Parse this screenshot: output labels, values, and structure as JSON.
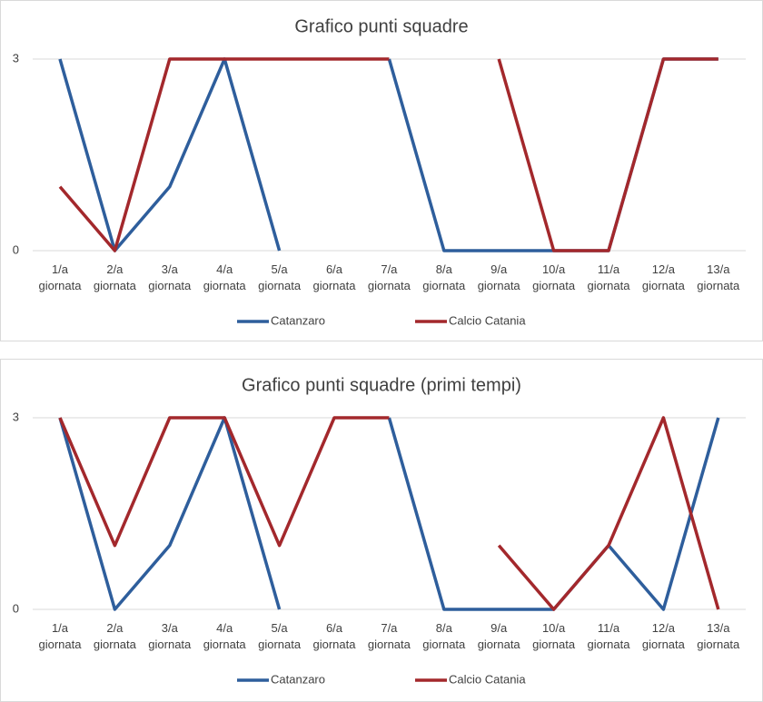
{
  "chart_data": [
    {
      "type": "line",
      "title": "Grafico punti squadre",
      "categories": [
        "1/a giornata",
        "2/a giornata",
        "3/a giornata",
        "4/a giornata",
        "5/a giornata",
        "6/a giornata",
        "7/a giornata",
        "8/a giornata",
        "9/a giornata",
        "10/a giornata",
        "11/a giornata",
        "12/a giornata",
        "13/a giornata"
      ],
      "series": [
        {
          "name": "Catanzaro",
          "color": "#2e5e9c",
          "values": [
            3,
            0,
            1,
            3,
            0,
            null,
            3,
            0,
            0,
            0,
            0,
            3,
            3
          ]
        },
        {
          "name": "Calcio Catania",
          "color": "#a3282c",
          "values": [
            1,
            0,
            3,
            3,
            3,
            3,
            3,
            null,
            3,
            0,
            0,
            3,
            3
          ]
        }
      ],
      "ylim": [
        0,
        3
      ],
      "yticks": [
        0,
        3
      ],
      "grid": true,
      "legend": "bottom"
    },
    {
      "type": "line",
      "title": "Grafico punti squadre (primi tempi)",
      "categories": [
        "1/a giornata",
        "2/a giornata",
        "3/a giornata",
        "4/a giornata",
        "5/a giornata",
        "6/a giornata",
        "7/a giornata",
        "8/a giornata",
        "9/a giornata",
        "10/a giornata",
        "11/a giornata",
        "12/a giornata",
        "13/a giornata"
      ],
      "series": [
        {
          "name": "Catanzaro",
          "color": "#2e5e9c",
          "values": [
            3,
            0,
            1,
            3,
            0,
            null,
            3,
            0,
            0,
            0,
            1,
            0,
            3
          ]
        },
        {
          "name": "Calcio Catania",
          "color": "#a3282c",
          "values": [
            3,
            1,
            3,
            3,
            1,
            3,
            3,
            null,
            1,
            0,
            1,
            3,
            0
          ]
        }
      ],
      "ylim": [
        0,
        3
      ],
      "yticks": [
        0,
        3
      ],
      "grid": true,
      "legend": "bottom"
    }
  ]
}
